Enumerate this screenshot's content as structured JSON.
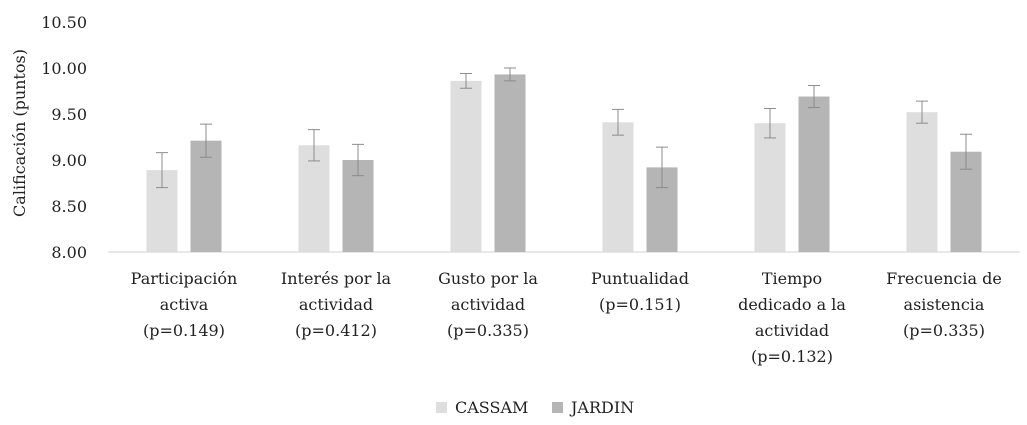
{
  "chart_data": {
    "type": "bar",
    "ylabel": "Calificación (puntos)",
    "ylim": [
      8.0,
      10.5
    ],
    "yticks": [
      "8.00",
      "8.50",
      "9.00",
      "9.50",
      "10.00",
      "10.50"
    ],
    "ytick_values": [
      8.0,
      8.5,
      9.0,
      9.5,
      10.0,
      10.5
    ],
    "categories": [
      [
        "Participación",
        "activa",
        "(p=0.149)"
      ],
      [
        "Interés por la",
        "actividad",
        "(p=0.412)"
      ],
      [
        "Gusto por la",
        "actividad",
        "(p=0.335)"
      ],
      [
        "Puntualidad",
        "(p=0.151)"
      ],
      [
        "Tiempo",
        "dedicado a la",
        "actividad",
        "(p=0.132)"
      ],
      [
        "Frecuencia de",
        "asistencia",
        "(p=0.335)"
      ]
    ],
    "series": [
      {
        "name": "CASSAM",
        "color": "#dedede",
        "values": [
          8.89,
          9.16,
          9.86,
          9.41,
          9.4,
          9.52
        ],
        "errors": [
          0.19,
          0.17,
          0.08,
          0.14,
          0.16,
          0.12
        ]
      },
      {
        "name": "JARDIN",
        "color": "#b5b5b5",
        "values": [
          9.21,
          9.0,
          9.93,
          8.92,
          9.69,
          9.09
        ],
        "errors": [
          0.18,
          0.17,
          0.07,
          0.22,
          0.12,
          0.19
        ]
      }
    ],
    "legend_position": "bottom-center",
    "grid": false
  }
}
